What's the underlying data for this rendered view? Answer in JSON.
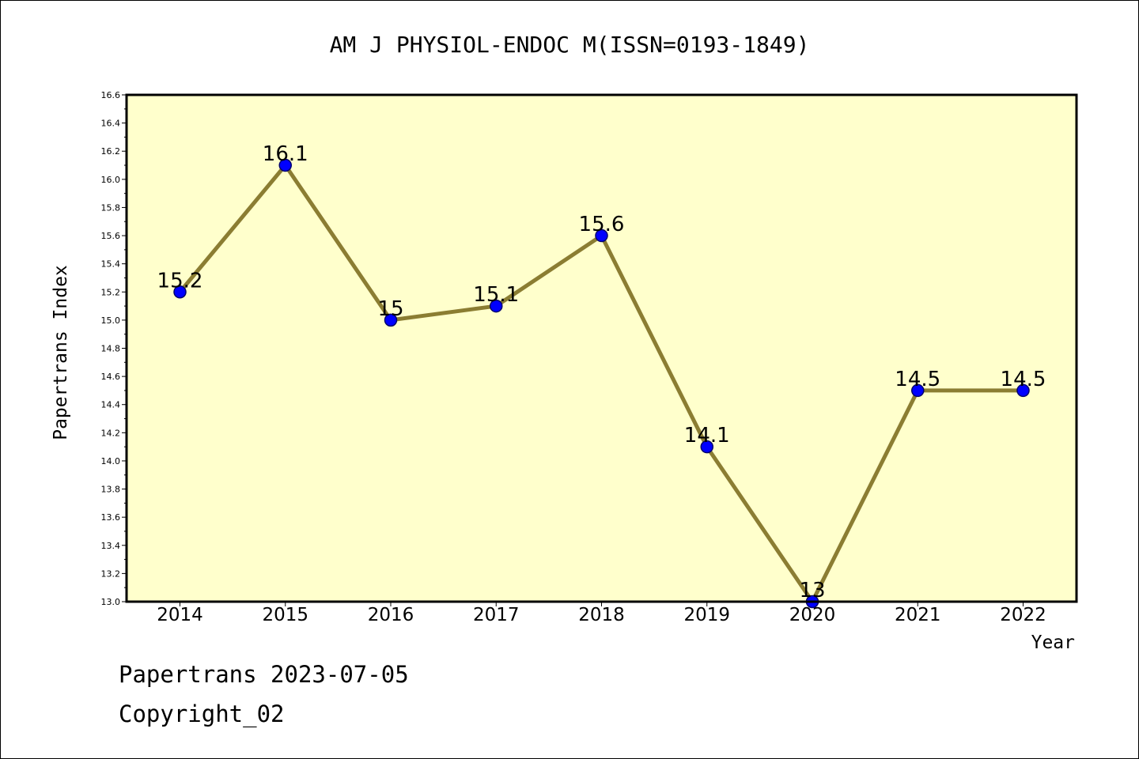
{
  "chart_data": {
    "type": "line",
    "title": "AM J PHYSIOL-ENDOC M(ISSN=0193-1849)",
    "xlabel": "Year",
    "ylabel": "Papertrans Index",
    "categories": [
      "2014",
      "2015",
      "2016",
      "2017",
      "2018",
      "2019",
      "2020",
      "2021",
      "2022"
    ],
    "values": [
      15.2,
      16.1,
      15.0,
      15.1,
      15.6,
      14.1,
      13.0,
      14.5,
      14.5
    ],
    "data_labels": [
      "15.2",
      "16.1",
      "15",
      "15.1",
      "15.6",
      "14.1",
      "13",
      "14.5",
      "14.5"
    ],
    "ylim": [
      13.0,
      16.6
    ],
    "yticks": [
      "13.0",
      "13.2",
      "13.4",
      "13.6",
      "13.8",
      "14.0",
      "14.2",
      "14.4",
      "14.6",
      "14.8",
      "15.0",
      "15.2",
      "15.4",
      "15.6",
      "15.8",
      "16.0",
      "16.2",
      "16.4",
      "16.6"
    ],
    "grid": false,
    "legend": "none",
    "colors": {
      "plot_background": "#ffffcc",
      "line": "#8b7d32",
      "marker": "#0000ff",
      "marker_edge": "#00006e"
    }
  },
  "footer": {
    "date_line": "Papertrans 2023-07-05",
    "copyright": "Copyright_02"
  }
}
